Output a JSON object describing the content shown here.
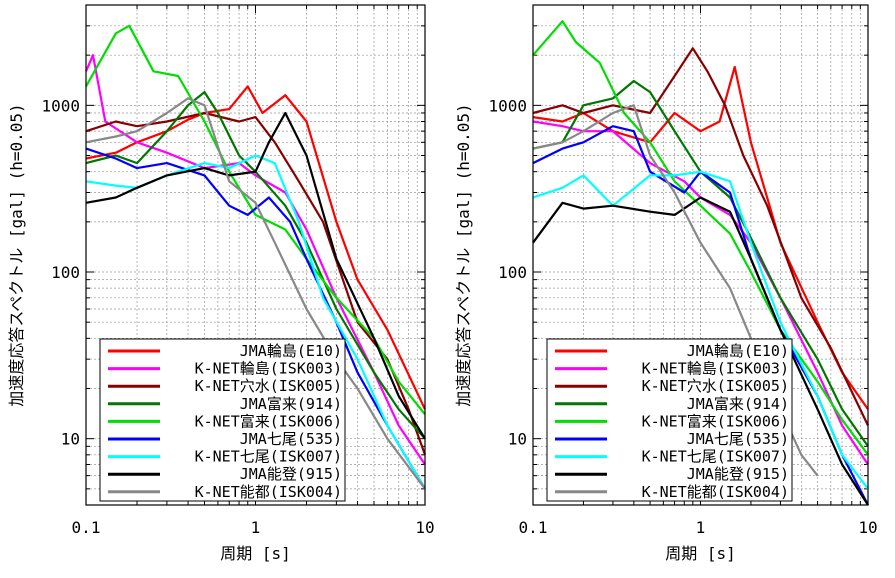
{
  "chart_data": [
    {
      "type": "line",
      "ylabel": "加速度応答スペクトル [gal] (h=0.05)",
      "xlabel": "周期 [s]",
      "x_scale": "log",
      "y_scale": "log",
      "xlim": [
        0.1,
        10
      ],
      "ylim": [
        4,
        4000
      ],
      "grid": true,
      "legend_position": "bottom-left",
      "x_tick_labels": [
        "0.1",
        "1",
        "10"
      ],
      "y_tick_labels": [
        "10",
        "100",
        "1000"
      ],
      "series": [
        {
          "name": "JMA輪島(E10)",
          "color": "#ff0000",
          "points": [
            [
              0.1,
              480
            ],
            [
              0.15,
              520
            ],
            [
              0.2,
              600
            ],
            [
              0.3,
              700
            ],
            [
              0.4,
              820
            ],
            [
              0.5,
              900
            ],
            [
              0.7,
              950
            ],
            [
              0.9,
              1300
            ],
            [
              1.1,
              900
            ],
            [
              1.5,
              1150
            ],
            [
              2,
              800
            ],
            [
              3,
              200
            ],
            [
              4,
              90
            ],
            [
              6,
              45
            ],
            [
              10,
              15
            ]
          ]
        },
        {
          "name": "K-NET輪島(ISK003)",
          "color": "#ff00ff",
          "points": [
            [
              0.1,
              1600
            ],
            [
              0.11,
              2000
            ],
            [
              0.13,
              800
            ],
            [
              0.2,
              600
            ],
            [
              0.3,
              520
            ],
            [
              0.5,
              420
            ],
            [
              0.8,
              450
            ],
            [
              1,
              380
            ],
            [
              1.5,
              300
            ],
            [
              2,
              180
            ],
            [
              3,
              70
            ],
            [
              5,
              25
            ],
            [
              7,
              12
            ],
            [
              10,
              7
            ]
          ]
        },
        {
          "name": "K-NET穴水(ISK005)",
          "color": "#880000",
          "points": [
            [
              0.1,
              700
            ],
            [
              0.15,
              800
            ],
            [
              0.2,
              750
            ],
            [
              0.3,
              800
            ],
            [
              0.5,
              900
            ],
            [
              0.8,
              800
            ],
            [
              1,
              850
            ],
            [
              1.3,
              600
            ],
            [
              1.8,
              350
            ],
            [
              2.5,
              200
            ],
            [
              4,
              50
            ],
            [
              6,
              30
            ],
            [
              8,
              15
            ],
            [
              10,
              8
            ]
          ]
        },
        {
          "name": "JMA富来(914)",
          "color": "#007700",
          "points": [
            [
              0.1,
              450
            ],
            [
              0.15,
              500
            ],
            [
              0.2,
              450
            ],
            [
              0.3,
              700
            ],
            [
              0.4,
              1000
            ],
            [
              0.5,
              1200
            ],
            [
              0.6,
              900
            ],
            [
              0.8,
              500
            ],
            [
              1,
              400
            ],
            [
              1.5,
              250
            ],
            [
              2,
              150
            ],
            [
              3,
              60
            ],
            [
              5,
              25
            ],
            [
              7,
              15
            ],
            [
              10,
              10
            ]
          ]
        },
        {
          "name": "K-NET富来(ISK006)",
          "color": "#00dd00",
          "points": [
            [
              0.1,
              1300
            ],
            [
              0.15,
              2700
            ],
            [
              0.18,
              3000
            ],
            [
              0.25,
              1600
            ],
            [
              0.35,
              1500
            ],
            [
              0.5,
              800
            ],
            [
              0.7,
              400
            ],
            [
              1,
              220
            ],
            [
              1.5,
              180
            ],
            [
              2,
              120
            ],
            [
              3,
              70
            ],
            [
              5,
              40
            ],
            [
              7,
              22
            ],
            [
              10,
              14
            ]
          ]
        },
        {
          "name": "JMA七尾(535)",
          "color": "#0000ff",
          "points": [
            [
              0.1,
              550
            ],
            [
              0.15,
              480
            ],
            [
              0.2,
              420
            ],
            [
              0.3,
              450
            ],
            [
              0.5,
              380
            ],
            [
              0.7,
              250
            ],
            [
              0.9,
              220
            ],
            [
              1.2,
              280
            ],
            [
              1.6,
              200
            ],
            [
              2,
              120
            ],
            [
              3,
              50
            ],
            [
              4,
              25
            ],
            [
              6,
              12
            ],
            [
              10,
              5
            ]
          ]
        },
        {
          "name": "K-NET七尾(ISK007)",
          "color": "#00ffff",
          "points": [
            [
              0.1,
              350
            ],
            [
              0.15,
              330
            ],
            [
              0.2,
              320
            ],
            [
              0.3,
              380
            ],
            [
              0.5,
              450
            ],
            [
              0.7,
              420
            ],
            [
              1,
              500
            ],
            [
              1.3,
              450
            ],
            [
              1.8,
              200
            ],
            [
              2.5,
              70
            ],
            [
              4,
              30
            ],
            [
              6,
              12
            ],
            [
              10,
              5
            ]
          ]
        },
        {
          "name": "JMA能登(915)",
          "color": "#000000",
          "points": [
            [
              0.1,
              260
            ],
            [
              0.15,
              280
            ],
            [
              0.2,
              320
            ],
            [
              0.3,
              380
            ],
            [
              0.5,
              420
            ],
            [
              0.7,
              380
            ],
            [
              1,
              400
            ],
            [
              1.2,
              600
            ],
            [
              1.5,
              900
            ],
            [
              2,
              500
            ],
            [
              3,
              120
            ],
            [
              5,
              40
            ],
            [
              7,
              18
            ],
            [
              10,
              10
            ]
          ]
        },
        {
          "name": "K-NET能都(ISK004)",
          "color": "#888888",
          "points": [
            [
              0.1,
              600
            ],
            [
              0.15,
              650
            ],
            [
              0.2,
              700
            ],
            [
              0.3,
              900
            ],
            [
              0.4,
              1100
            ],
            [
              0.5,
              1000
            ],
            [
              0.7,
              350
            ],
            [
              1,
              260
            ],
            [
              1.3,
              150
            ],
            [
              2,
              60
            ],
            [
              3,
              30
            ],
            [
              4,
              20
            ],
            [
              6,
              10
            ],
            [
              10,
              5
            ]
          ]
        }
      ]
    },
    {
      "type": "line",
      "ylabel": "加速度応答スペクトル [gal] (h=0.05)",
      "xlabel": "周期 [s]",
      "x_scale": "log",
      "y_scale": "log",
      "xlim": [
        0.1,
        10
      ],
      "ylim": [
        4,
        4000
      ],
      "grid": true,
      "legend_position": "bottom-left",
      "x_tick_labels": [
        "0.1",
        "1",
        "10"
      ],
      "y_tick_labels": [
        "10",
        "100",
        "1000"
      ],
      "series": [
        {
          "name": "JMA輪島(E10)",
          "color": "#ff0000",
          "points": [
            [
              0.1,
              850
            ],
            [
              0.15,
              800
            ],
            [
              0.2,
              900
            ],
            [
              0.3,
              700
            ],
            [
              0.5,
              600
            ],
            [
              0.7,
              900
            ],
            [
              1,
              700
            ],
            [
              1.3,
              800
            ],
            [
              1.6,
              1700
            ],
            [
              2,
              600
            ],
            [
              3,
              150
            ],
            [
              5,
              50
            ],
            [
              7,
              25
            ],
            [
              10,
              15
            ]
          ]
        },
        {
          "name": "K-NET輪島(ISK003)",
          "color": "#ff00ff",
          "points": [
            [
              0.1,
              800
            ],
            [
              0.15,
              750
            ],
            [
              0.2,
              700
            ],
            [
              0.3,
              700
            ],
            [
              0.5,
              450
            ],
            [
              0.8,
              350
            ],
            [
              1,
              280
            ],
            [
              1.5,
              220
            ],
            [
              2,
              150
            ],
            [
              3,
              70
            ],
            [
              5,
              25
            ],
            [
              7,
              12
            ],
            [
              10,
              7
            ]
          ]
        },
        {
          "name": "K-NET穴水(ISK005)",
          "color": "#880000",
          "points": [
            [
              0.1,
              900
            ],
            [
              0.15,
              1000
            ],
            [
              0.2,
              900
            ],
            [
              0.3,
              1000
            ],
            [
              0.5,
              900
            ],
            [
              0.7,
              1500
            ],
            [
              0.9,
              2200
            ],
            [
              1.1,
              1600
            ],
            [
              1.4,
              1000
            ],
            [
              1.8,
              500
            ],
            [
              2.5,
              250
            ],
            [
              4,
              70
            ],
            [
              6,
              35
            ],
            [
              10,
              12
            ]
          ]
        },
        {
          "name": "JMA富来(914)",
          "color": "#007700",
          "points": [
            [
              0.1,
              550
            ],
            [
              0.15,
              600
            ],
            [
              0.2,
              1000
            ],
            [
              0.3,
              1100
            ],
            [
              0.4,
              1400
            ],
            [
              0.5,
              1200
            ],
            [
              0.7,
              700
            ],
            [
              1,
              400
            ],
            [
              1.5,
              280
            ],
            [
              2,
              160
            ],
            [
              3,
              70
            ],
            [
              5,
              30
            ],
            [
              7,
              15
            ],
            [
              10,
              9
            ]
          ]
        },
        {
          "name": "K-NET富来(ISK006)",
          "color": "#00dd00",
          "points": [
            [
              0.1,
              2000
            ],
            [
              0.15,
              3200
            ],
            [
              0.18,
              2400
            ],
            [
              0.25,
              1800
            ],
            [
              0.35,
              900
            ],
            [
              0.5,
              600
            ],
            [
              0.7,
              350
            ],
            [
              1,
              250
            ],
            [
              1.5,
              170
            ],
            [
              2,
              100
            ],
            [
              3,
              45
            ],
            [
              5,
              22
            ],
            [
              7,
              13
            ],
            [
              10,
              8
            ]
          ]
        },
        {
          "name": "JMA七尾(535)",
          "color": "#0000ff",
          "points": [
            [
              0.1,
              450
            ],
            [
              0.15,
              550
            ],
            [
              0.2,
              600
            ],
            [
              0.3,
              750
            ],
            [
              0.4,
              700
            ],
            [
              0.5,
              400
            ],
            [
              0.8,
              300
            ],
            [
              1,
              400
            ],
            [
              1.5,
              300
            ],
            [
              2,
              120
            ],
            [
              3,
              45
            ],
            [
              5,
              18
            ],
            [
              7,
              8
            ],
            [
              10,
              4
            ]
          ]
        },
        {
          "name": "K-NET七尾(ISK007)",
          "color": "#00ffff",
          "points": [
            [
              0.1,
              280
            ],
            [
              0.15,
              320
            ],
            [
              0.2,
              380
            ],
            [
              0.3,
              250
            ],
            [
              0.5,
              380
            ],
            [
              0.7,
              380
            ],
            [
              1,
              400
            ],
            [
              1.5,
              350
            ],
            [
              2,
              150
            ],
            [
              3,
              50
            ],
            [
              5,
              18
            ],
            [
              7,
              8
            ],
            [
              10,
              5
            ]
          ]
        },
        {
          "name": "JMA能登(915)",
          "color": "#000000",
          "points": [
            [
              0.1,
              150
            ],
            [
              0.15,
              260
            ],
            [
              0.2,
              240
            ],
            [
              0.3,
              250
            ],
            [
              0.5,
              230
            ],
            [
              0.7,
              220
            ],
            [
              1,
              280
            ],
            [
              1.5,
              230
            ],
            [
              2,
              120
            ],
            [
              3,
              45
            ],
            [
              5,
              15
            ],
            [
              7,
              7
            ],
            [
              10,
              4
            ]
          ]
        },
        {
          "name": "K-NET能都(ISK004)",
          "color": "#888888",
          "points": [
            [
              0.1,
              550
            ],
            [
              0.15,
              600
            ],
            [
              0.2,
              700
            ],
            [
              0.3,
              900
            ],
            [
              0.4,
              1000
            ],
            [
              0.5,
              500
            ],
            [
              0.7,
              300
            ],
            [
              1,
              150
            ],
            [
              1.5,
              80
            ],
            [
              2,
              40
            ],
            [
              3,
              15
            ],
            [
              4,
              8
            ],
            [
              5,
              6
            ]
          ]
        }
      ]
    }
  ]
}
